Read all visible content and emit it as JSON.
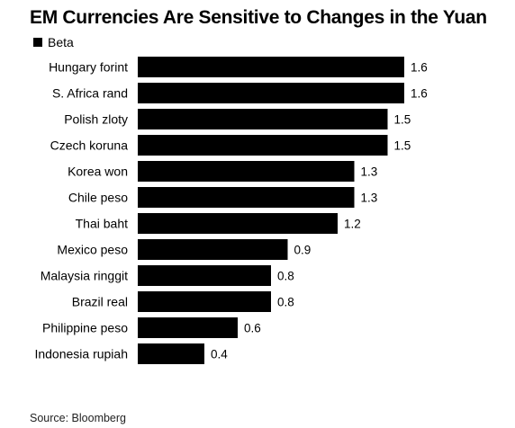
{
  "chart_data": {
    "type": "bar",
    "orientation": "horizontal",
    "title": "EM Currencies Are Sensitive to Changes in the Yuan",
    "legend": [
      "Beta"
    ],
    "legend_position": "top-left",
    "categories": [
      "Hungary forint",
      "S. Africa rand",
      "Polish zloty",
      "Czech koruna",
      "Korea won",
      "Chile peso",
      "Thai baht",
      "Mexico peso",
      "Malaysia ringgit",
      "Brazil real",
      "Philippine peso",
      "Indonesia rupiah"
    ],
    "series": [
      {
        "name": "Beta",
        "values": [
          1.6,
          1.6,
          1.5,
          1.5,
          1.3,
          1.3,
          1.2,
          0.9,
          0.8,
          0.8,
          0.6,
          0.4
        ],
        "labels": [
          "1.6",
          "1.6",
          "1.5",
          "1.5",
          "1.3",
          "1.3",
          "1.2",
          "0.9",
          "0.8",
          "0.8",
          "0.6",
          "0.4"
        ]
      }
    ],
    "grid": false,
    "bar_color": "#000000",
    "source": "Source: Bloomberg"
  }
}
